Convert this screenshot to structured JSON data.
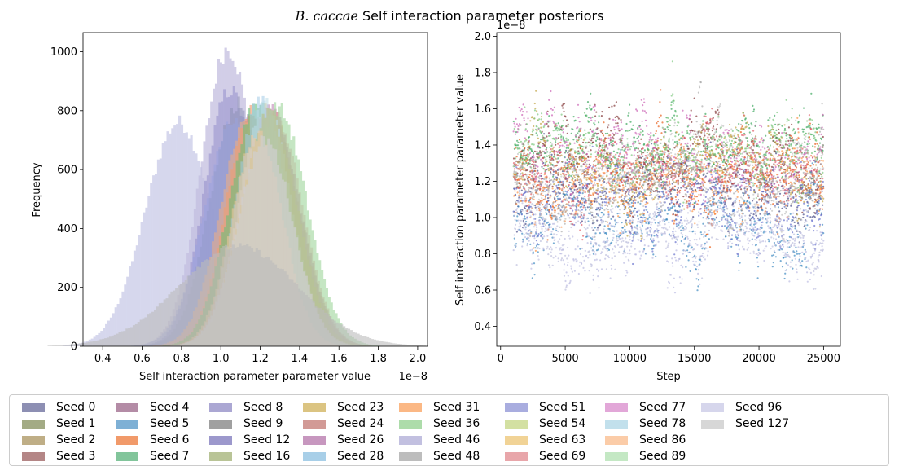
{
  "title": {
    "italic": "B. caccae",
    "rest": " Self interaction parameter posteriors"
  },
  "chart_data": [
    {
      "type": "bar",
      "subtype": "histogram",
      "xlabel": "Self interaction parameter parameter value",
      "ylabel": "Frequency",
      "x_offset_label": "1e−8",
      "xlim": [
        0.3,
        2.05
      ],
      "ylim": [
        0,
        1065
      ],
      "xticks": [
        "0.4",
        "0.6",
        "0.8",
        "1.0",
        "1.2",
        "1.4",
        "1.6",
        "1.8",
        "2.0"
      ],
      "yticks": [
        "0",
        "200",
        "400",
        "600",
        "800",
        "1000"
      ],
      "series": [
        {
          "name": "Seed 96",
          "color": "#c5c7e6",
          "alpha": 0.7,
          "mean": 0.78,
          "sd": 0.17,
          "peak": 760,
          "dip": 0.03
        },
        {
          "name": "Seed 46",
          "color": "#c3bee0",
          "alpha": 0.75,
          "mean": 1.03,
          "sd": 0.135,
          "peak": 1010
        },
        {
          "name": "Seed 8",
          "color": "#9b95cf",
          "alpha": 0.6,
          "mean": 1.04,
          "sd": 0.13,
          "peak": 870
        },
        {
          "name": "Seed 0",
          "color": "#8e92b6",
          "alpha": 0.55,
          "mean": 1.08,
          "sd": 0.14,
          "peak": 820
        },
        {
          "name": "Seed 51",
          "color": "#9aa3e0",
          "alpha": 0.5,
          "mean": 1.06,
          "sd": 0.15,
          "peak": 760
        },
        {
          "name": "Seed 6",
          "color": "#f28c5c",
          "alpha": 0.55,
          "mean": 1.15,
          "sd": 0.13,
          "peak": 800
        },
        {
          "name": "Seed 31",
          "color": "#f9b07a",
          "alpha": 0.5,
          "mean": 1.13,
          "sd": 0.14,
          "peak": 760
        },
        {
          "name": "Seed 7",
          "color": "#6dbf7b",
          "alpha": 0.6,
          "mean": 1.18,
          "sd": 0.14,
          "peak": 830
        },
        {
          "name": "Seed 23",
          "color": "#d8bd6e",
          "alpha": 0.55,
          "mean": 1.24,
          "sd": 0.14,
          "peak": 810
        },
        {
          "name": "Seed 26",
          "color": "#c58fbc",
          "alpha": 0.65,
          "mean": 1.25,
          "sd": 0.145,
          "peak": 800
        },
        {
          "name": "Seed 24",
          "color": "#cc8a8a",
          "alpha": 0.45,
          "mean": 1.24,
          "sd": 0.15,
          "peak": 790
        },
        {
          "name": "Seed 69",
          "color": "#e79ba4",
          "alpha": 0.5,
          "mean": 1.27,
          "sd": 0.14,
          "peak": 780
        },
        {
          "name": "Seed 36",
          "color": "#9fd69c",
          "alpha": 0.6,
          "mean": 1.28,
          "sd": 0.15,
          "peak": 810
        },
        {
          "name": "Seed 28",
          "color": "#a4cbe7",
          "alpha": 0.55,
          "mean": 1.2,
          "sd": 0.13,
          "peak": 835
        },
        {
          "name": "Seed 78",
          "color": "#bcdde9",
          "alpha": 0.55,
          "mean": 1.22,
          "sd": 0.13,
          "peak": 825
        },
        {
          "name": "Seed 16",
          "color": "#b8c495",
          "alpha": 0.75,
          "mean": 1.24,
          "sd": 0.14,
          "peak": 790
        },
        {
          "name": "Seed 86",
          "color": "#f8c9a2",
          "alpha": 0.5,
          "mean": 1.18,
          "sd": 0.13,
          "peak": 720
        },
        {
          "name": "Seed 127",
          "color": "#d0d0d0",
          "alpha": 0.7,
          "mean": 1.22,
          "sd": 0.14,
          "peak": 700
        },
        {
          "name": "Seed 48",
          "color": "#bcbcbc",
          "alpha": 0.6,
          "mean": 1.08,
          "sd": 0.3,
          "peak": 340
        }
      ]
    },
    {
      "type": "scatter",
      "subtype": "trace",
      "xlabel": "Step",
      "ylabel": "Self interaction parameter parameter value",
      "y_offset_label": "1e−8",
      "xlim": [
        -300,
        26300
      ],
      "ylim": [
        0.29,
        2.02
      ],
      "xstart": 1000,
      "xend": 25000,
      "xticks": [
        0,
        5000,
        10000,
        15000,
        20000,
        25000
      ],
      "yticks": [
        "0.4",
        "0.6",
        "0.8",
        "1.0",
        "1.2",
        "1.4",
        "1.6",
        "1.8",
        "2.0"
      ],
      "series": [
        {
          "name": "Seed 0",
          "color": "#3b3d7e",
          "mean": 1.15,
          "sd": 0.18
        },
        {
          "name": "Seed 3",
          "color": "#7a2a2a",
          "mean": 1.3,
          "sd": 0.18
        },
        {
          "name": "Seed 6",
          "color": "#e6550d",
          "mean": 1.2,
          "sd": 0.2
        },
        {
          "name": "Seed 7",
          "color": "#31a354",
          "mean": 1.4,
          "sd": 0.17
        },
        {
          "name": "Seed 26",
          "color": "#c75ab0",
          "mean": 1.35,
          "sd": 0.17
        },
        {
          "name": "Seed 23",
          "color": "#bd9e39",
          "mean": 1.3,
          "sd": 0.2
        },
        {
          "name": "Seed 31",
          "color": "#fd8d3c",
          "mean": 1.2,
          "sd": 0.2
        },
        {
          "name": "Seed 5",
          "color": "#3182bd",
          "mean": 1.0,
          "sd": 0.18
        },
        {
          "name": "Seed 51",
          "color": "#5d69c9",
          "mean": 1.05,
          "sd": 0.18
        },
        {
          "name": "Seed 69",
          "color": "#de5560",
          "mean": 1.25,
          "sd": 0.18
        },
        {
          "name": "Seed 36",
          "color": "#74c476",
          "mean": 1.35,
          "sd": 0.18
        },
        {
          "name": "Seed 96",
          "color": "#b8b8e0",
          "mean": 0.88,
          "sd": 0.18
        },
        {
          "name": "Seed 46",
          "color": "#bcbddc",
          "mean": 0.92,
          "sd": 0.17
        },
        {
          "name": "Seed 127",
          "color": "#bfbfbf",
          "mean": 1.22,
          "sd": 0.13
        },
        {
          "name": "Seed 48",
          "color": "#a8a8a8",
          "mean": 1.2,
          "sd": 0.12
        }
      ]
    }
  ],
  "legend": {
    "items": [
      {
        "label": "Seed 0",
        "color": "#8d8fb3"
      },
      {
        "label": "Seed 1",
        "color": "#a3ab85"
      },
      {
        "label": "Seed 2",
        "color": "#bfae86"
      },
      {
        "label": "Seed 3",
        "color": "#b48686"
      },
      {
        "label": "Seed 4",
        "color": "#b48ca6"
      },
      {
        "label": "Seed 5",
        "color": "#7eb0d5"
      },
      {
        "label": "Seed 6",
        "color": "#f19a6a"
      },
      {
        "label": "Seed 7",
        "color": "#82c59b"
      },
      {
        "label": "Seed 8",
        "color": "#aba7d3"
      },
      {
        "label": "Seed 9",
        "color": "#a0a0a0"
      },
      {
        "label": "Seed 12",
        "color": "#9c98cc"
      },
      {
        "label": "Seed 16",
        "color": "#b9c497"
      },
      {
        "label": "Seed 23",
        "color": "#dbc482"
      },
      {
        "label": "Seed 24",
        "color": "#d29a96"
      },
      {
        "label": "Seed 26",
        "color": "#c797bf"
      },
      {
        "label": "Seed 28",
        "color": "#a8cfe8"
      },
      {
        "label": "Seed 31",
        "color": "#fbb885"
      },
      {
        "label": "Seed 36",
        "color": "#addcaa"
      },
      {
        "label": "Seed 46",
        "color": "#c2c0e0"
      },
      {
        "label": "Seed 48",
        "color": "#bdbdbd"
      },
      {
        "label": "Seed 51",
        "color": "#a9addf"
      },
      {
        "label": "Seed 54",
        "color": "#d3e0a2"
      },
      {
        "label": "Seed 63",
        "color": "#f1d396"
      },
      {
        "label": "Seed 69",
        "color": "#e8a6aa"
      },
      {
        "label": "Seed 77",
        "color": "#e2a7d8"
      },
      {
        "label": "Seed 78",
        "color": "#c2e0ec"
      },
      {
        "label": "Seed 86",
        "color": "#fbcca8"
      },
      {
        "label": "Seed 89",
        "color": "#c4e8c4"
      },
      {
        "label": "Seed 96",
        "color": "#d6d6ec"
      },
      {
        "label": "Seed 127",
        "color": "#d7d7d7"
      }
    ]
  }
}
